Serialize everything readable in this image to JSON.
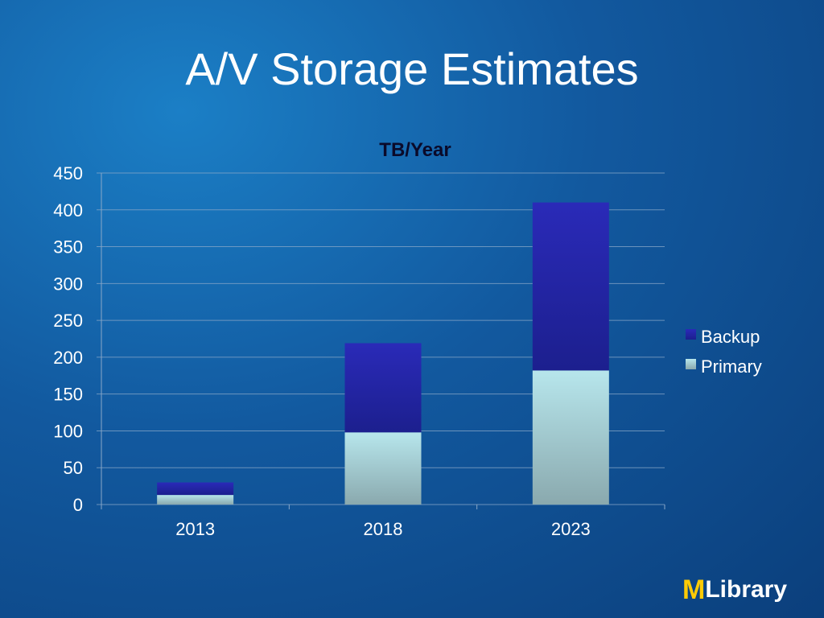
{
  "slide": {
    "title": "A/V Storage Estimates"
  },
  "chart_data": {
    "type": "bar",
    "stacked": true,
    "title": "TB/Year",
    "xlabel": "",
    "ylabel": "",
    "categories": [
      "2013",
      "2018",
      "2023"
    ],
    "series": [
      {
        "name": "Primary",
        "values": [
          13,
          98,
          182
        ],
        "color": "#a8dbe2"
      },
      {
        "name": "Backup",
        "values": [
          17,
          121,
          228
        ],
        "color": "#2626a6"
      }
    ],
    "ylim": [
      0,
      450
    ],
    "yticks": [
      "0",
      "50",
      "100",
      "150",
      "200",
      "250",
      "300",
      "350",
      "400",
      "450"
    ],
    "grid": true,
    "legend_position": "right"
  },
  "logo": {
    "mark": "M",
    "word": "Library",
    "mark_color": "#ffcb05"
  }
}
